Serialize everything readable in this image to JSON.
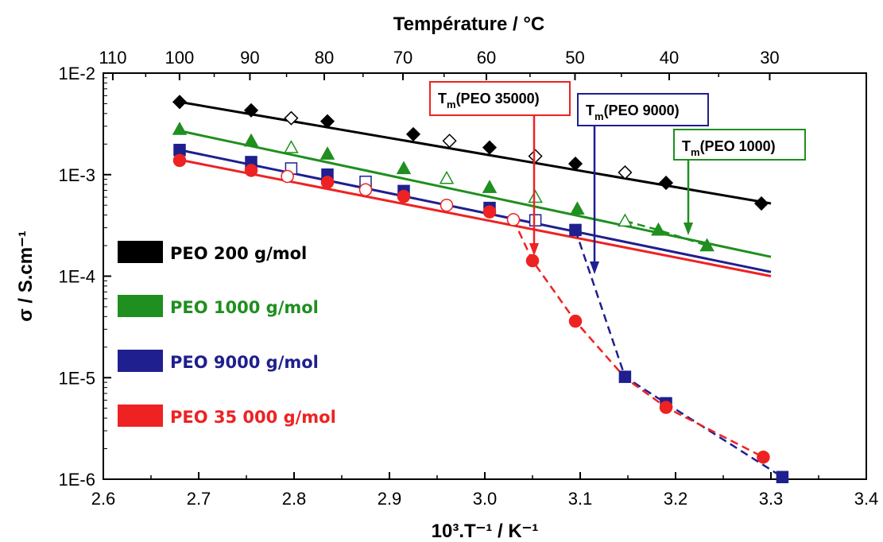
{
  "chart_data": {
    "type": "scatter",
    "title": "",
    "xlabel": "10³.T⁻¹ / K⁻¹",
    "ylabel": "σ / S.cm⁻¹",
    "top_xlabel": "Température  / °C",
    "xlim": [
      2.6,
      3.4
    ],
    "ylim": [
      1e-06,
      0.01
    ],
    "yscale": "log",
    "x_ticks": [
      "2.6",
      "2.7",
      "2.8",
      "2.9",
      "3.0",
      "3.1",
      "3.2",
      "3.3",
      "3.4"
    ],
    "y_ticks": [
      "1E-6",
      "1E-5",
      "1E-4",
      "1E-3",
      "1E-2"
    ],
    "top_ticks": [
      "110",
      "100",
      "90",
      "80",
      "70",
      "60",
      "50",
      "40",
      "30"
    ],
    "grid": false,
    "legend_position": "left",
    "colors": {
      "PEO 200 g/mol": "#000000",
      "PEO 1000 g/mol": "#1f8f1f",
      "PEO 9000 g/mol": "#1f1f8f",
      "PEO 35 000 g/mol": "#ee2222"
    },
    "series": [
      {
        "name": "PEO 200 g/mol",
        "color": "#000000",
        "marker": "diamond",
        "points": [
          [
            2.68,
            0.0052
          ],
          [
            2.755,
            0.0043
          ],
          [
            2.835,
            0.00335
          ],
          [
            2.925,
            0.0025
          ],
          [
            3.005,
            0.00185
          ],
          [
            3.095,
            0.00128
          ],
          [
            3.19,
            0.00083
          ],
          [
            3.29,
            0.00052
          ]
        ],
        "open_points": [
          [
            2.797,
            0.0036
          ],
          [
            2.963,
            0.00215
          ],
          [
            3.053,
            0.00152
          ],
          [
            3.147,
            0.00105
          ]
        ],
        "fit": [
          [
            2.68,
            0.0052
          ],
          [
            3.3,
            0.00052
          ]
        ]
      },
      {
        "name": "PEO 1000 g/mol",
        "color": "#1f8f1f",
        "marker": "triangle",
        "points": [
          [
            2.68,
            0.0028
          ],
          [
            2.755,
            0.00215
          ],
          [
            2.835,
            0.0016
          ],
          [
            2.915,
            0.00115
          ],
          [
            3.005,
            0.00075
          ],
          [
            3.097,
            0.00046
          ],
          [
            3.182,
            0.000285
          ],
          [
            3.233,
            0.0002
          ]
        ],
        "open_points": [
          [
            2.797,
            0.00185
          ],
          [
            2.96,
            0.00092
          ],
          [
            3.053,
            0.0006
          ],
          [
            3.147,
            0.00035
          ]
        ],
        "fit": [
          [
            2.68,
            0.0027
          ],
          [
            3.3,
            0.000155
          ]
        ]
      },
      {
        "name": "PEO 9000 g/mol",
        "color": "#1f1f8f",
        "marker": "square",
        "points": [
          [
            2.68,
            0.00175
          ],
          [
            2.755,
            0.00133
          ],
          [
            2.835,
            0.001
          ],
          [
            2.915,
            0.00069
          ],
          [
            3.005,
            0.00047
          ],
          [
            3.095,
            0.000285
          ],
          [
            3.147,
            1.02e-05
          ],
          [
            3.19,
            5.6e-06
          ],
          [
            3.312,
            1.05e-06
          ]
        ],
        "open_points": [
          [
            2.797,
            0.00115
          ],
          [
            2.875,
            0.00085
          ],
          [
            3.053,
            0.000355
          ]
        ],
        "fit": [
          [
            2.68,
            0.00175
          ],
          [
            3.3,
            0.00011
          ]
        ]
      },
      {
        "name": "PEO 35 000 g/mol",
        "color": "#ee2222",
        "marker": "circle",
        "points": [
          [
            2.68,
            0.00138
          ],
          [
            2.755,
            0.0011
          ],
          [
            2.835,
            0.00084
          ],
          [
            2.915,
            0.00061
          ],
          [
            3.005,
            0.00043
          ],
          [
            3.05,
            0.000142
          ],
          [
            3.095,
            3.6e-05
          ],
          [
            3.19,
            5.1e-06
          ],
          [
            3.292,
            1.65e-06
          ]
        ],
        "open_points": [
          [
            2.793,
            0.00096
          ],
          [
            2.875,
            0.00071
          ],
          [
            2.96,
            0.0005
          ],
          [
            3.03,
            0.00036
          ]
        ],
        "fit": [
          [
            2.68,
            0.0014
          ],
          [
            3.3,
            0.0001
          ]
        ]
      }
    ],
    "annotations": [
      {
        "text_main": "T",
        "text_sub": "m",
        "text_rest": "(PEO 35000)",
        "color": "#ee2222"
      },
      {
        "text_main": "T",
        "text_sub": "m",
        "text_rest": "(PEO 9000)",
        "color": "#1f1f8f"
      },
      {
        "text_main": "T",
        "text_sub": "m",
        "text_rest": "(PEO 1000)",
        "color": "#1f8f1f"
      }
    ]
  }
}
